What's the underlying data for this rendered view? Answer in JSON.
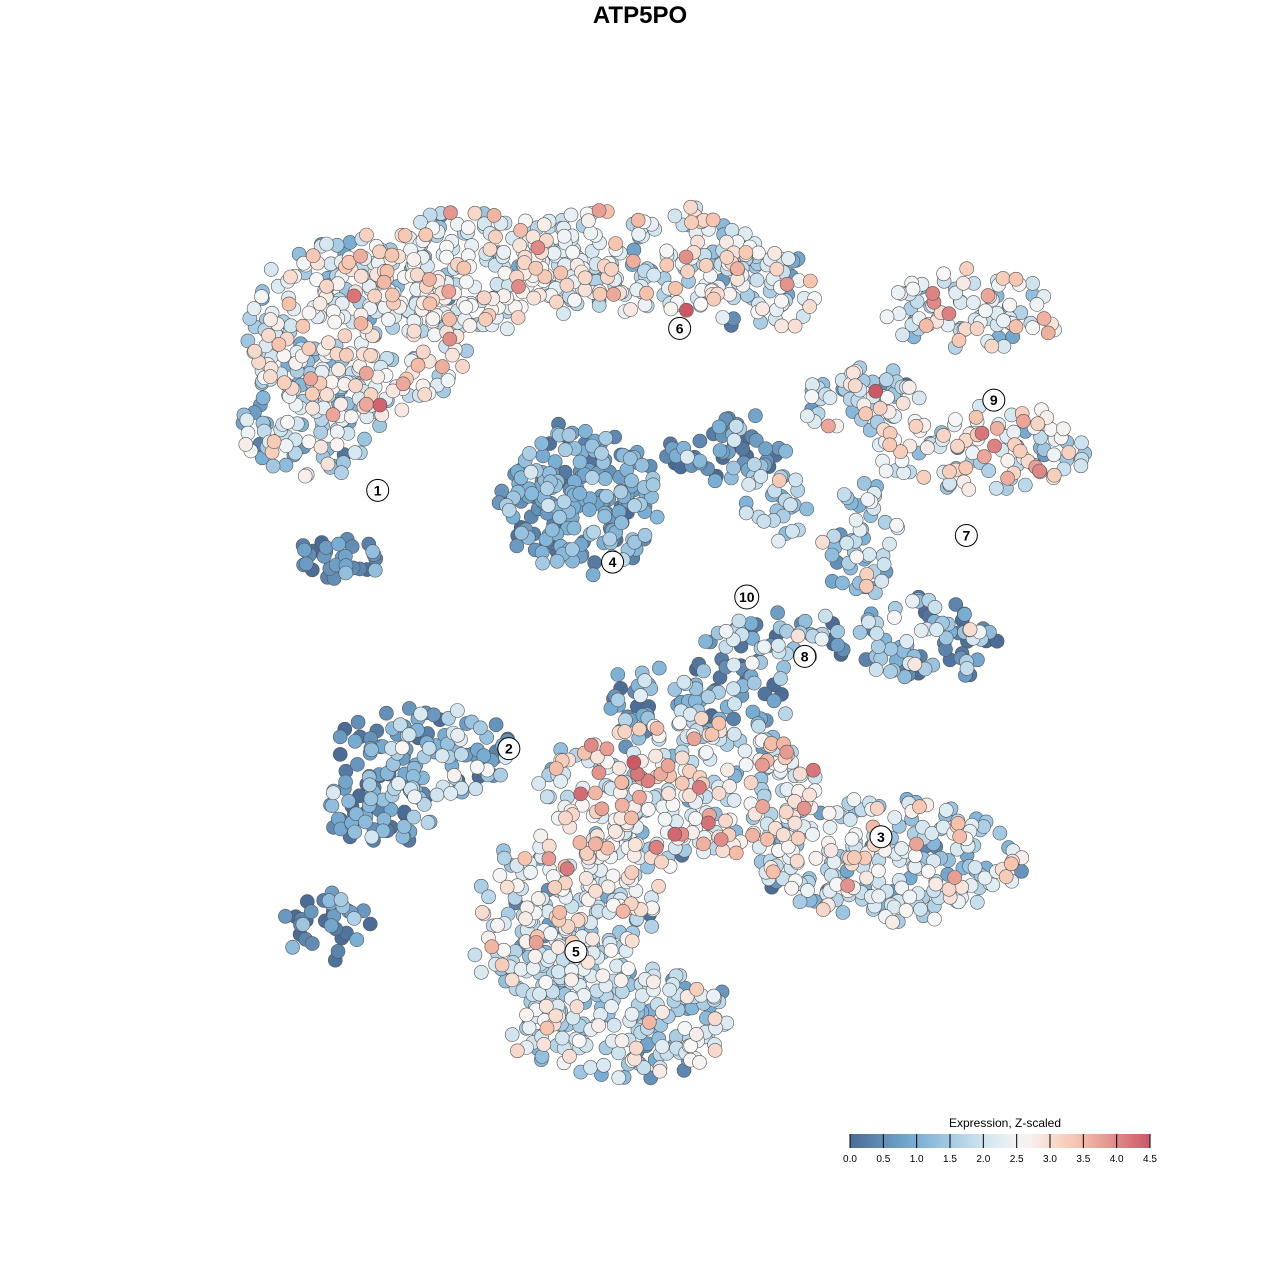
{
  "title": "ATP5PO",
  "chart_data": {
    "type": "scatter",
    "title": "ATP5PO",
    "xlabel": "",
    "ylabel": "",
    "grid": false,
    "legend": {
      "title": "Expression, Z-scaled",
      "position": "bottom-right",
      "ticks": [
        "0.0",
        "0.5",
        "1.0",
        "1.5",
        "2.0",
        "2.5",
        "3.0",
        "3.5",
        "4.0",
        "4.5"
      ],
      "range": [
        0,
        4.5
      ]
    },
    "colors": {
      "low": "#4a6c96",
      "mid_low": "#7ab0d6",
      "mid_light": "#cfe4ef",
      "mid": "#f7f7f7",
      "mid_high": "#f7c4ad",
      "high": "#cc5866",
      "outline": "#555555"
    },
    "clusters": [
      {
        "label": "1",
        "x": -8.6,
        "y": 7.3,
        "mean_expr": 2.3
      },
      {
        "label": "2",
        "x": -4.3,
        "y": -5.3,
        "mean_expr": 1.2
      },
      {
        "label": "3",
        "x": 7.9,
        "y": -9.6,
        "mean_expr": 1.9
      },
      {
        "label": "4",
        "x": -0.9,
        "y": 3.8,
        "mean_expr": 1.0
      },
      {
        "label": "5",
        "x": -2.1,
        "y": -15.2,
        "mean_expr": 2.0
      },
      {
        "label": "6",
        "x": 1.3,
        "y": 15.2,
        "mean_expr": 2.3
      },
      {
        "label": "7",
        "x": 10.7,
        "y": 5.1,
        "mean_expr": 2.3
      },
      {
        "label": "8",
        "x": 5.4,
        "y": -0.8,
        "mean_expr": 1.3
      },
      {
        "label": "9",
        "x": 11.6,
        "y": 11.7,
        "mean_expr": 2.5
      },
      {
        "label": "10",
        "x": 3.5,
        "y": 2.1,
        "mean_expr": 1.2
      }
    ]
  }
}
